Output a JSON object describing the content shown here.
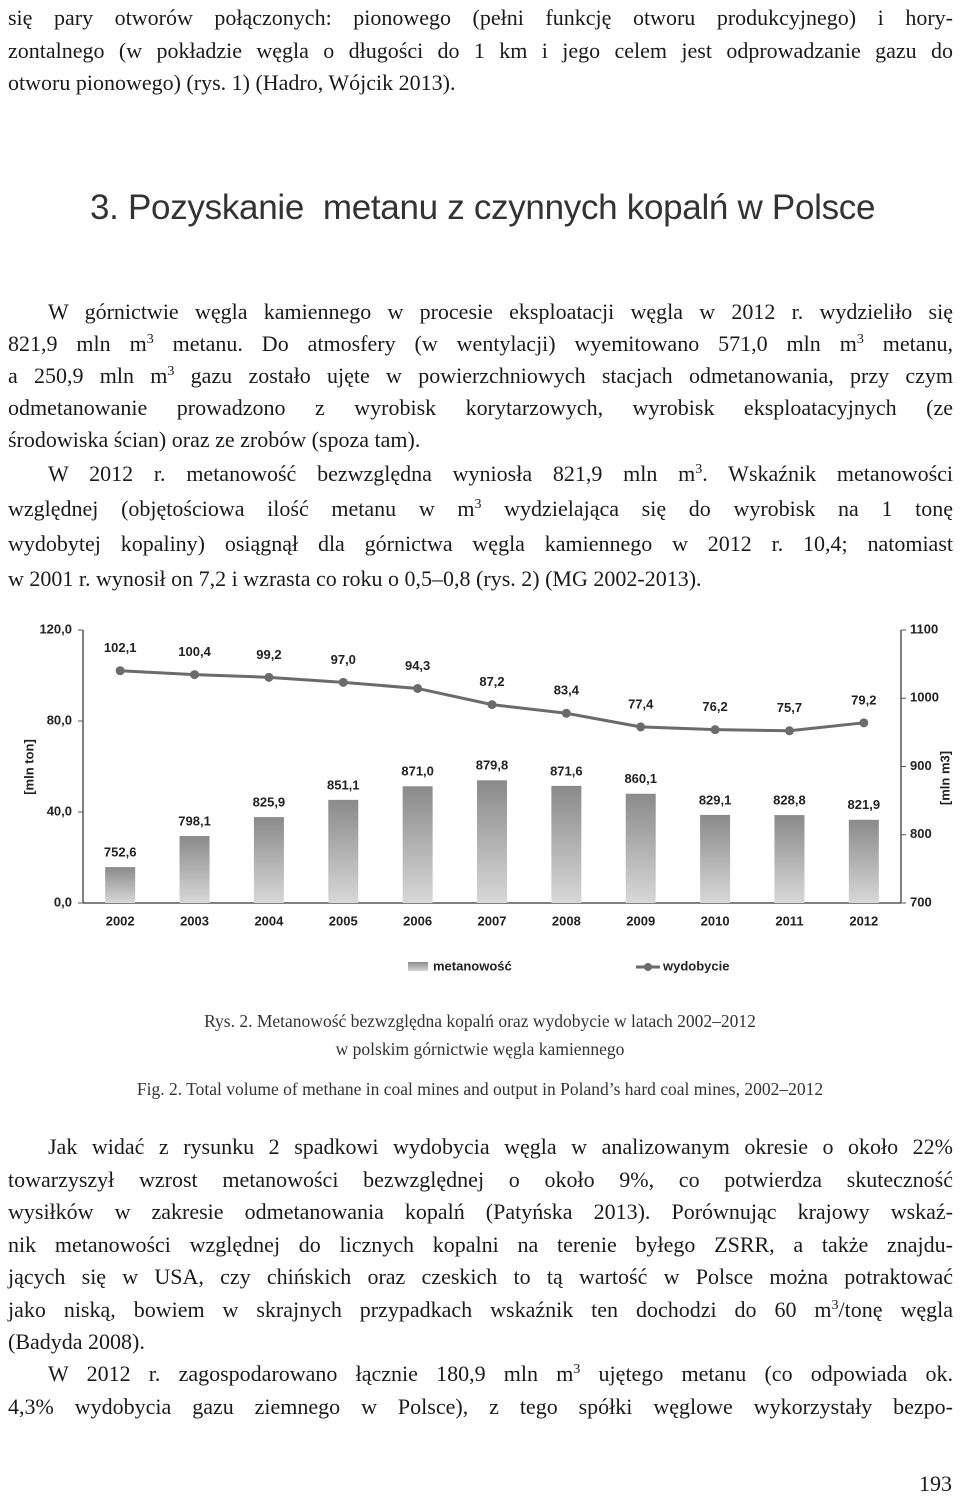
{
  "paragraphs": [
    [
      [
        "się pary otworów połączonych: pionowego (pełni funkcję otworu produkcyjnego) i hory-"
      ],
      [
        "zontalnego (w pokładzie węgla o długości do 1 km i jego celem jest odprowadzanie gazu do"
      ],
      [
        "otworu pionowego) (rys. 1) (Hadro, Wójcik 2013)."
      ]
    ],
    [
      [
        "W górnictwie węgla kamiennego w procesie eksploatacji węgla w 2012 r. wydzieliło się"
      ],
      [
        "821,9 mln m",
        {
          "sup": "3"
        },
        " metanu. Do atmosfery (w wentylacji) wyemitowano 571,0 mln m",
        {
          "sup": "3"
        },
        " metanu,"
      ],
      [
        "a 250,9 mln m",
        {
          "sup": "3"
        },
        " gazu zostało ujęte w powierzchniowych stacjach odmetanowania, przy czym"
      ],
      [
        "odmetanowanie prowadzono z wyrobisk korytarzowych, wyrobisk eksploatacyjnych (ze"
      ],
      [
        "środowiska ścian) oraz ze zrobów (spoza tam)."
      ]
    ],
    [
      [
        "W 2012 r. metanowość bezwzględna wyniosła 821,9 mln m",
        {
          "sup": "3"
        },
        ". Wskaźnik metanowości"
      ],
      [
        "względnej (objętościowa ilość metanu w m",
        {
          "sup": "3"
        },
        " wydzielająca się do wyrobisk na 1 tonę"
      ],
      [
        "wydobytej kopaliny) osiągnął dla górnictwa węgla kamiennego w 2012 r. 10,4; natomiast"
      ],
      [
        "w 2001 r. wynosił on  7,2 i wzrasta co roku o 0,5–0,8 (rys. 2) (MG 2002-2013)."
      ]
    ],
    [
      [
        "Jak widać z rysunku 2 spadkowi wydobycia węgla w analizowanym okresie o około 22%"
      ],
      [
        "towarzyszył wzrost metanowości bezwzględnej o około 9%, co potwierdza skuteczność"
      ],
      [
        "wysiłków w zakresie odmetanowania kopalń (Patyńska 2013). Porównując krajowy wskaź-"
      ],
      [
        "nik metanowości względnej do licznych kopalni na terenie byłego ZSRR, a także znajdu-"
      ],
      [
        "jących się w USA, czy chińskich oraz czeskich to tą wartość w Polsce można potraktować"
      ],
      [
        "jako niską, bowiem w skrajnych przypadkach wskaźnik ten dochodzi do 60 m",
        {
          "sup": "3"
        },
        "/tonę węgla"
      ],
      [
        "(Badyda 2008)."
      ]
    ],
    [
      [
        "W 2012 r. zagospodarowano łącznie 180,9 mln m",
        {
          "sup": "3"
        },
        " ujętego metanu (co odpowiada ok."
      ],
      [
        "4,3% wydobycia gazu ziemnego w Polsce), z tego spółki węglowe wykorzystały bezpo-"
      ]
    ]
  ],
  "heading": "3. Pozyskanie  metanu z czynnych kopalń w Polsce",
  "chart_data": {
    "type": "combo",
    "categories": [
      "2002",
      "2003",
      "2004",
      "2005",
      "2006",
      "2007",
      "2008",
      "2009",
      "2010",
      "2011",
      "2012"
    ],
    "series": [
      {
        "name": "metanowość",
        "type": "bar",
        "axis": "y2",
        "color": "#9b9b9b",
        "values": [
          752.6,
          798.1,
          825.9,
          851.1,
          871.0,
          879.8,
          871.6,
          860.1,
          829.1,
          828.8,
          821.9
        ],
        "value_labels": [
          "752,6",
          "798,1",
          "825,9",
          "851,1",
          "871,0",
          "879,8",
          "871,6",
          "860,1",
          "829,1",
          "828,8",
          "821,9"
        ]
      },
      {
        "name": "wydobycie",
        "type": "line",
        "color": "#6b6b6b",
        "values": [
          102.1,
          100.4,
          99.2,
          97.0,
          94.3,
          87.2,
          83.4,
          77.4,
          76.2,
          75.7,
          79.2
        ],
        "value_labels": [
          "102,1",
          "100,4",
          "99,2",
          "97,0",
          "94,3",
          "87,2",
          "83,4",
          "77,4",
          "76,2",
          "75,7",
          "79,2"
        ]
      }
    ],
    "ylabel": "[mln ton]",
    "y2label": "[mln m3]",
    "ylim": [
      0,
      120
    ],
    "yticks": [
      {
        "value": 0,
        "label": "0,0"
      },
      {
        "value": 40,
        "label": "40,0"
      },
      {
        "value": 80,
        "label": "80,0"
      },
      {
        "value": 120,
        "label": "120,0"
      }
    ],
    "y2lim": [
      700,
      1100
    ],
    "y2ticks": [
      700,
      800,
      900,
      1000,
      1100
    ],
    "grid": false,
    "legend": "bottom"
  },
  "caption_pl": [
    "Rys. 2. Metanowość bezwzględna kopalń oraz wydobycie w latach 2002–2012",
    "w polskim górnictwie węgla kamiennego"
  ],
  "caption_en": "Fig. 2. Total volume of methane in coal mines and output in Poland’s hard coal mines, 2002–2012",
  "page_number": "193"
}
